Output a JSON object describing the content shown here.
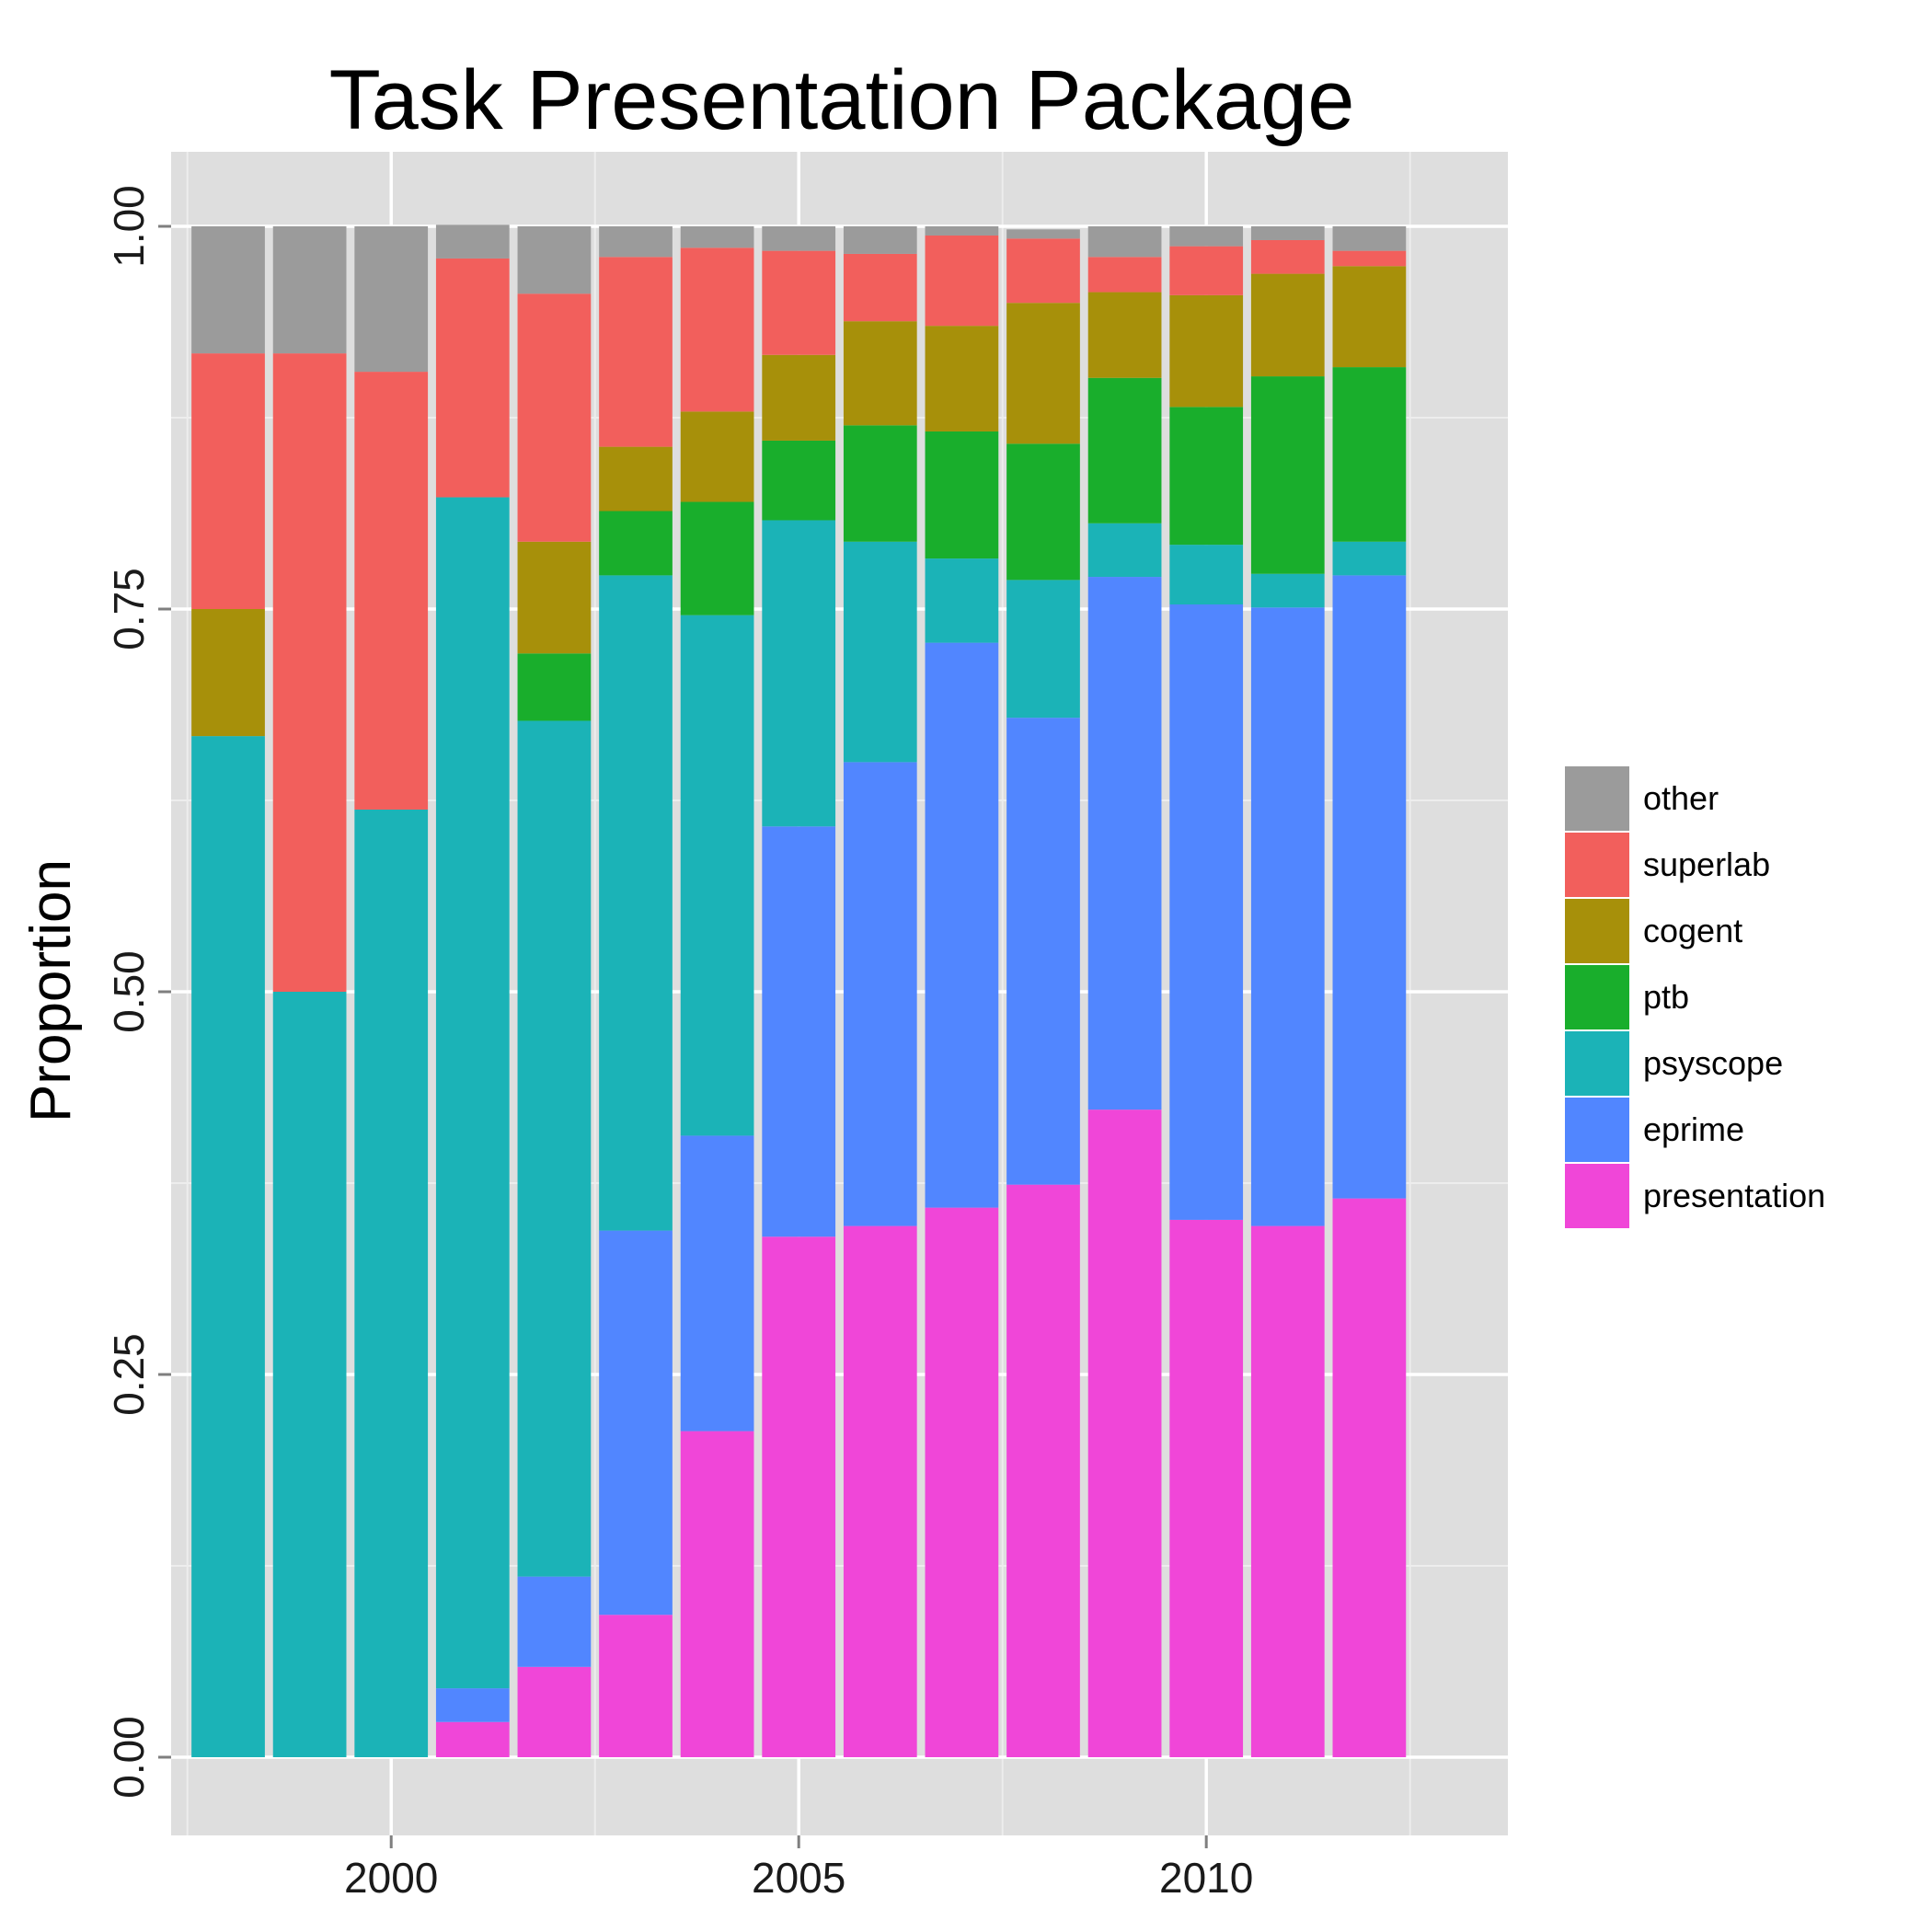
{
  "chart_data": {
    "type": "bar",
    "stacked": true,
    "title": "Task Presentation Package",
    "ylabel": "Proportion",
    "xlabel": "",
    "ylim": [
      0,
      1
    ],
    "xlim": [
      1997.3,
      2013.7
    ],
    "x_ticks": [
      2000,
      2005,
      2010
    ],
    "y_ticks": [
      0,
      0.25,
      0.5,
      0.75,
      1
    ],
    "y_tick_labels": [
      "0.00",
      "0.25",
      "0.50",
      "0.75",
      "1.00"
    ],
    "grid": true,
    "legend_position": "right",
    "x": [
      1998,
      1999,
      2000,
      2001,
      2002,
      2003,
      2004,
      2005,
      2006,
      2007,
      2008,
      2009,
      2010,
      2011,
      2012
    ],
    "series": [
      {
        "name": "presentation",
        "color": "#F046D8",
        "values": [
          0,
          0,
          0,
          0.023,
          0.059,
          0.093,
          0.213,
          0.34,
          0.347,
          0.359,
          0.374,
          0.423,
          0.351,
          0.347,
          0.365
        ]
      },
      {
        "name": "eprime",
        "color": "#5186FF",
        "values": [
          0,
          0,
          0,
          0.022,
          0.059,
          0.251,
          0.193,
          0.268,
          0.303,
          0.369,
          0.305,
          0.348,
          0.402,
          0.404,
          0.407
        ]
      },
      {
        "name": "psyscope",
        "color": "#1BB3B7",
        "values": [
          0.667,
          0.5,
          0.619,
          0.778,
          0.559,
          0.428,
          0.34,
          0.2,
          0.144,
          0.055,
          0.09,
          0.035,
          0.039,
          0.022,
          0.022
        ]
      },
      {
        "name": "ptb",
        "color": "#19AE2C",
        "values": [
          0,
          0,
          0,
          0,
          0.044,
          0.042,
          0.074,
          0.052,
          0.076,
          0.083,
          0.089,
          0.095,
          0.09,
          0.129,
          0.114
        ]
      },
      {
        "name": "cogent",
        "color": "#A7900A",
        "values": [
          0.083,
          0,
          0,
          0,
          0.073,
          0.042,
          0.059,
          0.056,
          0.068,
          0.069,
          0.092,
          0.056,
          0.073,
          0.067,
          0.066
        ]
      },
      {
        "name": "superlab",
        "color": "#F25F5C",
        "values": [
          0.167,
          0.417,
          0.286,
          0.156,
          0.162,
          0.124,
          0.107,
          0.068,
          0.044,
          0.059,
          0.042,
          0.023,
          0.032,
          0.022,
          0.01
        ]
      },
      {
        "name": "other",
        "color": "#9B9B9B",
        "values": [
          0.083,
          0.083,
          0.095,
          0.022,
          0.044,
          0.02,
          0.014,
          0.016,
          0.018,
          0.006,
          0.006,
          0.02,
          0.013,
          0.009,
          0.016
        ]
      }
    ]
  }
}
